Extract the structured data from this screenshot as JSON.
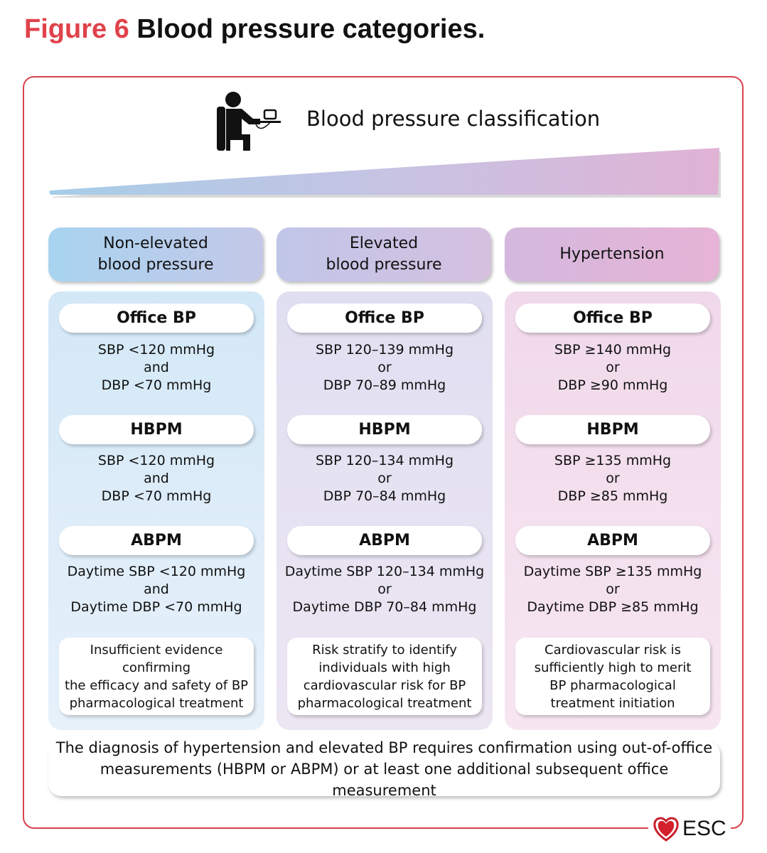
{
  "figure_label": "Figure 6",
  "figure_title": "Blood pressure categories.",
  "classification_title": "Blood pressure classification",
  "colors": {
    "accent": "#e0424b",
    "frame": "#d9424d",
    "blue": "#a9d3ef",
    "purple": "#c8c3e4",
    "pink": "#e2b5d7"
  },
  "columns": [
    {
      "header": "Non-elevated\nblood pressure",
      "office_label": "Office BP",
      "office": [
        "SBP <120 mmHg",
        "and",
        "DBP <70 mmHg"
      ],
      "hbpm_label": "HBPM",
      "hbpm": [
        "SBP <120 mmHg",
        "and",
        "DBP <70 mmHg"
      ],
      "abpm_label": "ABPM",
      "abpm": [
        "Daytime SBP <120 mmHg",
        "and",
        "Daytime DBP <70 mmHg"
      ],
      "note": "Insufficient evidence confirming\nthe efficacy and safety of BP\npharmacological treatment"
    },
    {
      "header": "Elevated\nblood pressure",
      "office_label": "Office BP",
      "office": [
        "SBP 120–139 mmHg",
        "or",
        "DBP 70–89 mmHg"
      ],
      "hbpm_label": "HBPM",
      "hbpm": [
        "SBP 120–134 mmHg",
        "or",
        "DBP 70–84 mmHg"
      ],
      "abpm_label": "ABPM",
      "abpm": [
        "Daytime SBP 120–134 mmHg",
        "or",
        "Daytime DBP 70–84 mmHg"
      ],
      "note": "Risk stratify to identify\nindividuals with high\ncardiovascular risk for BP\npharmacological treatment"
    },
    {
      "header": "Hypertension",
      "office_label": "Office BP",
      "office": [
        "SBP ≥140 mmHg",
        "or",
        "DBP ≥90 mmHg"
      ],
      "hbpm_label": "HBPM",
      "hbpm": [
        "SBP ≥135 mmHg",
        "or",
        "DBP ≥85 mmHg"
      ],
      "abpm_label": "ABPM",
      "abpm": [
        "Daytime SBP ≥135 mmHg",
        "or",
        "Daytime DBP ≥85 mmHg"
      ],
      "note": "Cardiovascular risk is\nsufficiently high to merit\nBP pharmacological\ntreatment initiation"
    }
  ],
  "footer": "The diagnosis of hypertension and elevated BP requires confirmation using out-of-office\nmeasurements  (HBPM or ABPM) or at least one additional subsequent office measurement",
  "logo_text": "ESC"
}
